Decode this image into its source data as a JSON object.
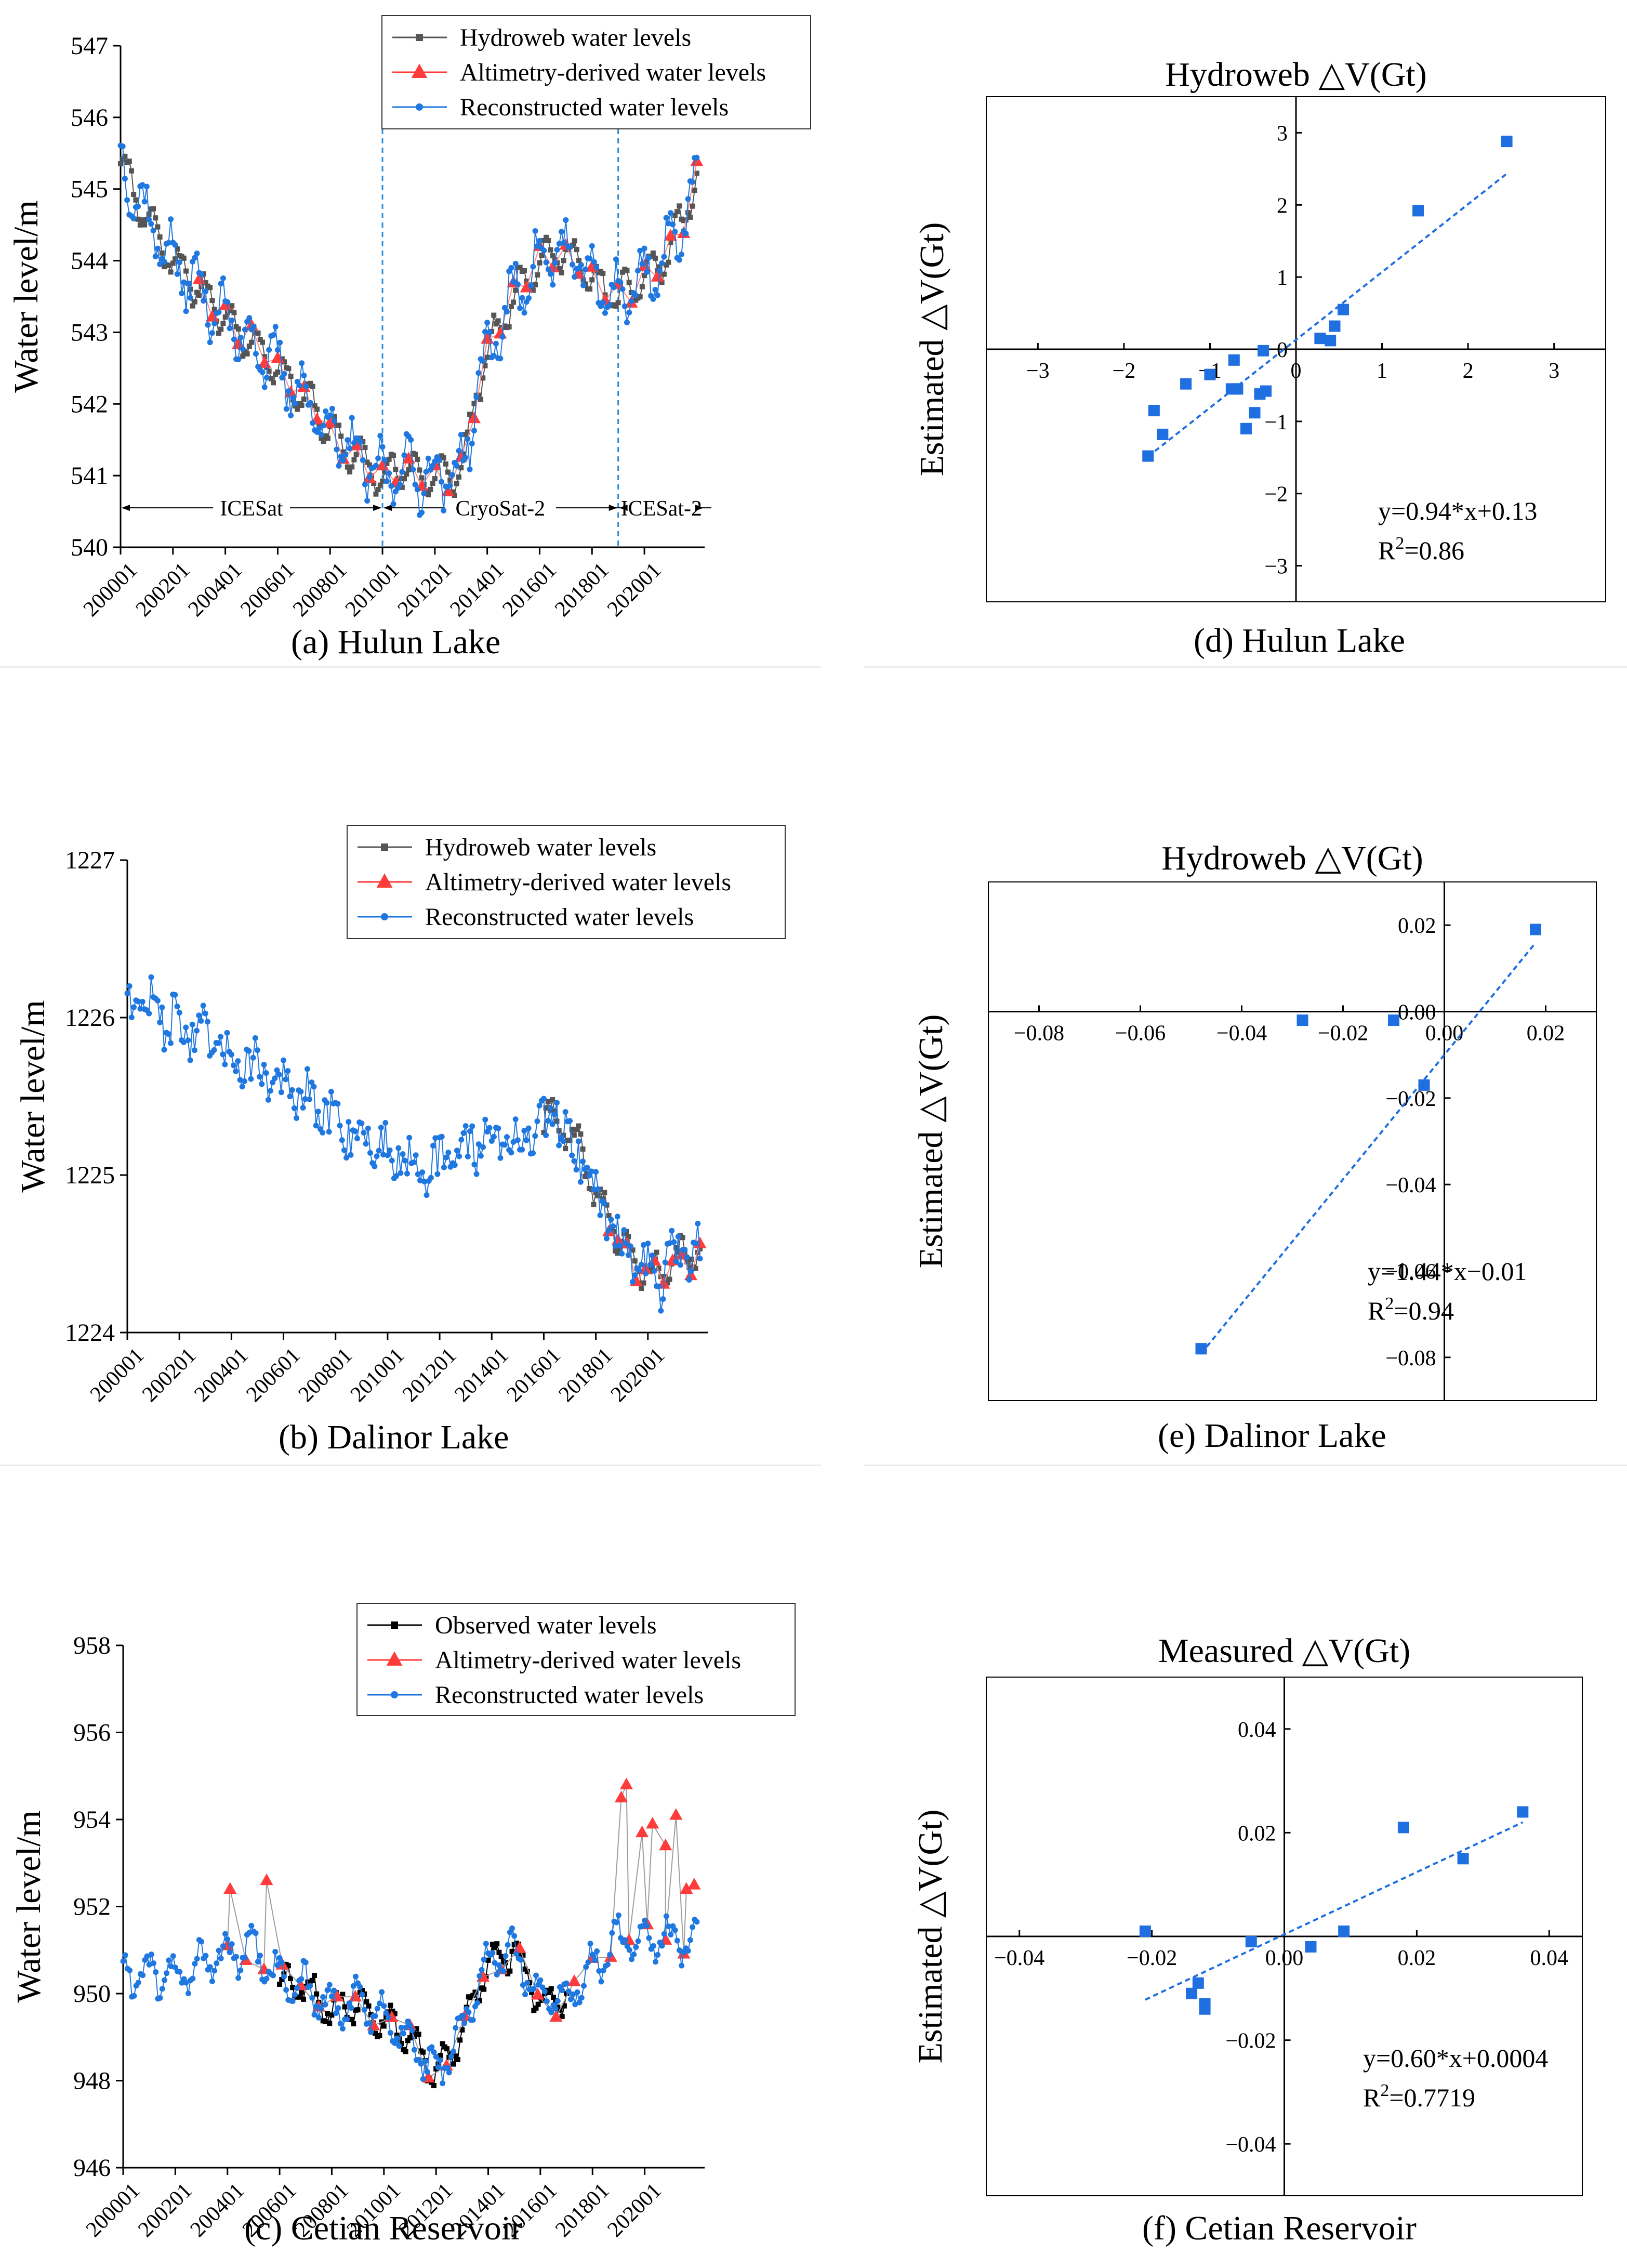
{
  "colors": {
    "hydroweb": "#555555",
    "observed": "#000000",
    "altimetry": "#ff3b3b",
    "reconstructed": "#1f77e0",
    "scatter": "#1f6fe0",
    "divider": "#2a8bd6"
  },
  "chart_data": [
    {
      "id": "a",
      "type": "line",
      "caption": "(a) Hulun Lake",
      "ylabel": "Water level/m",
      "xlabel": "",
      "ylim": [
        540,
        547
      ],
      "yticks": [
        540,
        541,
        542,
        543,
        544,
        545,
        546,
        547
      ],
      "xlim": [
        2000.0,
        2022.3
      ],
      "xticks": [
        2000,
        2002,
        2004,
        2006,
        2008,
        2010,
        2012,
        2014,
        2016,
        2018,
        2020
      ],
      "xtick_labels": [
        "200001",
        "200201",
        "200401",
        "200601",
        "200801",
        "201001",
        "201201",
        "201401",
        "201601",
        "201801",
        "202001"
      ],
      "legend": [
        "Hydroweb water levels",
        "Altimetry-derived water levels",
        "Reconstructed water levels"
      ],
      "legend_position": "top-right",
      "mission_dividers": [
        2010.0,
        2019.0
      ],
      "mission_labels": [
        {
          "text": "ICESat",
          "from": 2000.0,
          "to": 2010.0
        },
        {
          "text": "CryoSat-2",
          "from": 2010.0,
          "to": 2019.0
        },
        {
          "text": "ICESat-2",
          "from": 2019.0,
          "to": 2022.3
        }
      ],
      "mission_label_y": 540.55,
      "trend": [
        [
          2000.0,
          545.4
        ],
        [
          2000.5,
          545.0
        ],
        [
          2001.0,
          544.6
        ],
        [
          2001.5,
          544.3
        ],
        [
          2002.0,
          544.0
        ],
        [
          2002.5,
          543.8
        ],
        [
          2003.0,
          543.6
        ],
        [
          2003.5,
          543.4
        ],
        [
          2004.0,
          543.2
        ],
        [
          2004.5,
          543.0
        ],
        [
          2005.0,
          542.9
        ],
        [
          2005.5,
          542.7
        ],
        [
          2006.0,
          542.5
        ],
        [
          2006.5,
          542.3
        ],
        [
          2007.0,
          542.1
        ],
        [
          2007.5,
          541.9
        ],
        [
          2008.0,
          541.6
        ],
        [
          2008.5,
          541.4
        ],
        [
          2009.0,
          541.3
        ],
        [
          2009.5,
          541.1
        ],
        [
          2010.0,
          541.0
        ],
        [
          2010.5,
          541.1
        ],
        [
          2011.0,
          541.1
        ],
        [
          2011.5,
          541.0
        ],
        [
          2012.0,
          541.0
        ],
        [
          2012.5,
          541.0
        ],
        [
          2013.0,
          541.1
        ],
        [
          2013.3,
          541.5
        ],
        [
          2013.6,
          542.2
        ],
        [
          2014.0,
          542.7
        ],
        [
          2014.5,
          543.1
        ],
        [
          2015.0,
          543.5
        ],
        [
          2015.5,
          543.8
        ],
        [
          2016.0,
          544.0
        ],
        [
          2016.5,
          544.1
        ],
        [
          2017.0,
          544.1
        ],
        [
          2017.5,
          544.0
        ],
        [
          2018.0,
          543.7
        ],
        [
          2018.5,
          543.6
        ],
        [
          2019.0,
          543.5
        ],
        [
          2019.5,
          543.6
        ],
        [
          2020.0,
          543.8
        ],
        [
          2020.5,
          543.9
        ],
        [
          2021.0,
          544.2
        ],
        [
          2021.5,
          544.6
        ],
        [
          2022.0,
          545.2
        ]
      ],
      "series": [
        {
          "name": "Hydroweb water levels",
          "from": 2000.0,
          "to": 2022.0,
          "amp": 0.25,
          "jitter": 0.18,
          "seed": 11,
          "marker": "square"
        },
        {
          "name": "Altimetry-derived water levels",
          "from": 2003.0,
          "to": 2022.0,
          "amp": 0.2,
          "jitter": 0.12,
          "seed": 23,
          "marker": "triangle",
          "step": 0.5
        },
        {
          "name": "Reconstructed water levels",
          "from": 2000.0,
          "to": 2022.0,
          "amp": 0.35,
          "jitter": 0.45,
          "seed": 37,
          "marker": "circle"
        }
      ]
    },
    {
      "id": "b",
      "type": "line",
      "caption": "(b) Dalinor Lake",
      "ylabel": "Water level/m",
      "xlabel": "",
      "ylim": [
        1224,
        1227
      ],
      "yticks": [
        1224,
        1225,
        1226,
        1227
      ],
      "xlim": [
        2000.0,
        2022.3
      ],
      "xticks": [
        2000,
        2002,
        2004,
        2006,
        2008,
        2010,
        2012,
        2014,
        2016,
        2018,
        2020
      ],
      "xtick_labels": [
        "200001",
        "200201",
        "200401",
        "200601",
        "200801",
        "201001",
        "201201",
        "201401",
        "201601",
        "201801",
        "202001"
      ],
      "legend": [
        "Hydroweb water levels",
        "Altimetry-derived water levels",
        "Reconstructed water levels"
      ],
      "legend_position": "top-right",
      "trend": [
        [
          2000.0,
          1226.15
        ],
        [
          2001.0,
          1226.05
        ],
        [
          2002.0,
          1225.95
        ],
        [
          2003.0,
          1225.85
        ],
        [
          2004.0,
          1225.75
        ],
        [
          2005.0,
          1225.7
        ],
        [
          2006.0,
          1225.55
        ],
        [
          2007.0,
          1225.45
        ],
        [
          2008.0,
          1225.35
        ],
        [
          2009.0,
          1225.25
        ],
        [
          2010.0,
          1225.15
        ],
        [
          2011.0,
          1225.1
        ],
        [
          2012.0,
          1225.05
        ],
        [
          2013.0,
          1225.2
        ],
        [
          2014.0,
          1225.25
        ],
        [
          2015.0,
          1225.2
        ],
        [
          2016.0,
          1225.3
        ],
        [
          2016.5,
          1225.4
        ],
        [
          2017.0,
          1225.2
        ],
        [
          2017.5,
          1225.15
        ],
        [
          2018.0,
          1224.85
        ],
        [
          2018.5,
          1224.75
        ],
        [
          2019.0,
          1224.55
        ],
        [
          2019.5,
          1224.45
        ],
        [
          2020.0,
          1224.4
        ],
        [
          2020.5,
          1224.35
        ],
        [
          2021.0,
          1224.45
        ],
        [
          2021.5,
          1224.5
        ],
        [
          2022.0,
          1224.5
        ]
      ],
      "series": [
        {
          "name": "Hydroweb water levels",
          "from": 2016.0,
          "to": 2022.0,
          "amp": 0.1,
          "jitter": 0.12,
          "seed": 41,
          "marker": "square"
        },
        {
          "name": "Altimetry-derived water levels",
          "from": 2018.5,
          "to": 2022.0,
          "amp": 0.1,
          "jitter": 0.1,
          "seed": 43,
          "marker": "triangle",
          "step": 0.35
        },
        {
          "name": "Reconstructed water levels",
          "from": 2000.0,
          "to": 2022.0,
          "amp": 0.08,
          "jitter": 0.28,
          "seed": 47,
          "marker": "circle"
        }
      ]
    },
    {
      "id": "c",
      "type": "line",
      "caption": "(c) Cetian Reservoir",
      "ylabel": "Water level/m",
      "xlabel": "",
      "ylim": [
        946,
        958
      ],
      "yticks": [
        946,
        948,
        950,
        952,
        954,
        956,
        958
      ],
      "xlim": [
        2000.0,
        2022.3
      ],
      "xticks": [
        2000,
        2002,
        2004,
        2006,
        2008,
        2010,
        2012,
        2014,
        2016,
        2018,
        2020
      ],
      "xtick_labels": [
        "200001",
        "200201",
        "200401",
        "200601",
        "200801",
        "201001",
        "201201",
        "201401",
        "201601",
        "201801",
        "202001"
      ],
      "legend": [
        "Observed water levels",
        "Altimetry-derived water levels",
        "Reconstructed water levels"
      ],
      "legend_position": "top-right",
      "trend": [
        [
          2000.0,
          950.5
        ],
        [
          2002.0,
          950.4
        ],
        [
          2004.0,
          950.9
        ],
        [
          2005.0,
          951.0
        ],
        [
          2006.0,
          950.3
        ],
        [
          2007.0,
          950.2
        ],
        [
          2008.0,
          949.6
        ],
        [
          2009.0,
          949.8
        ],
        [
          2010.0,
          949.4
        ],
        [
          2011.0,
          949.0
        ],
        [
          2012.0,
          948.1
        ],
        [
          2013.0,
          949.1
        ],
        [
          2014.0,
          950.8
        ],
        [
          2015.0,
          951.0
        ],
        [
          2016.0,
          949.8
        ],
        [
          2017.0,
          949.9
        ],
        [
          2018.0,
          950.6
        ],
        [
          2019.0,
          951.2
        ],
        [
          2020.0,
          951.3
        ],
        [
          2021.0,
          951.2
        ],
        [
          2022.0,
          951.2
        ]
      ],
      "series": [
        {
          "name": "Observed water levels",
          "from": 2006.0,
          "to": 2017.0,
          "amp": 0.35,
          "jitter": 0.35,
          "seed": 53,
          "marker": "square"
        },
        {
          "name": "Altimetry-derived water levels",
          "from": 2004.0,
          "to": 2022.0,
          "amp": 0.3,
          "jitter": 0.2,
          "seed": 59,
          "marker": "triangle",
          "step": 0.7
        },
        {
          "name": "Reconstructed water levels",
          "from": 2000.0,
          "to": 2022.0,
          "amp": 0.4,
          "jitter": 0.5,
          "seed": 61,
          "marker": "circle"
        }
      ],
      "spikes": [
        [
          2004.1,
          952.4
        ],
        [
          2005.5,
          952.6
        ],
        [
          2019.1,
          954.5
        ],
        [
          2019.3,
          954.8
        ],
        [
          2019.9,
          953.7
        ],
        [
          2020.3,
          953.9
        ],
        [
          2020.8,
          953.4
        ],
        [
          2021.2,
          954.1
        ],
        [
          2021.6,
          952.4
        ],
        [
          2021.9,
          952.5
        ]
      ]
    },
    {
      "id": "d",
      "type": "scatter",
      "caption": "(d) Hulun Lake",
      "title": "Hydroweb △V(Gt)",
      "ylabel": "Estimated △V(Gt)",
      "xlim": [
        -3.6,
        3.6
      ],
      "ylim": [
        -3.5,
        3.5
      ],
      "xticks": [
        -3,
        -2,
        -1,
        0,
        1,
        2,
        3
      ],
      "xtick_labels": [
        "−3",
        "−2",
        "−1",
        "0",
        "1",
        "2",
        "3"
      ],
      "yticks": [
        -3,
        -2,
        -1,
        0,
        1,
        2,
        3
      ],
      "ytick_labels": [
        "−3",
        "−2",
        "−1",
        "0",
        "1",
        "2",
        "3"
      ],
      "points": [
        [
          -1.72,
          -1.48
        ],
        [
          -1.65,
          -0.85
        ],
        [
          -1.55,
          -1.18
        ],
        [
          -1.28,
          -0.48
        ],
        [
          -1.0,
          -0.35
        ],
        [
          -0.75,
          -0.55
        ],
        [
          -0.72,
          -0.15
        ],
        [
          -0.68,
          -0.55
        ],
        [
          -0.58,
          -1.1
        ],
        [
          -0.48,
          -0.88
        ],
        [
          -0.42,
          -0.62
        ],
        [
          -0.35,
          -0.58
        ],
        [
          -0.38,
          -0.02
        ],
        [
          0.28,
          0.15
        ],
        [
          0.4,
          0.12
        ],
        [
          0.45,
          0.32
        ],
        [
          0.55,
          0.55
        ],
        [
          1.42,
          1.92
        ],
        [
          2.45,
          2.88
        ]
      ],
      "fit": {
        "slope": 0.94,
        "intercept": 0.13,
        "x_from": -1.72,
        "x_to": 2.45
      },
      "equation": "y=0.94*x+0.13",
      "r2_label": "R",
      "r2_sup": "2",
      "r2_value": "=0.86"
    },
    {
      "id": "e",
      "type": "scatter",
      "caption": "(e) Dalinor Lake",
      "title": "Hydroweb △V(Gt)",
      "ylabel": "Estimated △V(Gt)",
      "xlim": [
        -0.09,
        0.03
      ],
      "ylim": [
        -0.09,
        0.03
      ],
      "xticks": [
        -0.08,
        -0.06,
        -0.04,
        -0.02,
        0.0,
        0.02
      ],
      "xtick_labels": [
        "−0.08",
        "−0.06",
        "−0.04",
        "−0.02",
        "0.00",
        "0.02"
      ],
      "yticks": [
        -0.08,
        -0.06,
        -0.04,
        -0.02,
        0.0,
        0.02
      ],
      "ytick_labels": [
        "−0.08",
        "−0.06",
        "−0.04",
        "−0.02",
        "0.00",
        "0.02"
      ],
      "points": [
        [
          -0.048,
          -0.078
        ],
        [
          -0.028,
          -0.002
        ],
        [
          -0.01,
          -0.002
        ],
        [
          -0.004,
          -0.017
        ],
        [
          0.018,
          0.019
        ]
      ],
      "fit": {
        "slope": 1.44,
        "intercept": -0.01,
        "x_from": -0.048,
        "x_to": 0.018
      },
      "equation": "y=1.44*x−0.01",
      "r2_label": "R",
      "r2_sup": "2",
      "r2_value": "=0.94"
    },
    {
      "id": "f",
      "type": "scatter",
      "caption": "(f) Cetian Reservoir",
      "title": "Measured △V(Gt)",
      "ylabel": "Estimated △V(Gt)",
      "xlim": [
        -0.045,
        0.045
      ],
      "ylim": [
        -0.05,
        0.05
      ],
      "xticks": [
        -0.04,
        -0.02,
        0.0,
        0.02,
        0.04
      ],
      "xtick_labels": [
        "−0.04",
        "−0.02",
        "0.00",
        "0.02",
        "0.04"
      ],
      "yticks": [
        -0.04,
        -0.02,
        0.02,
        0.04
      ],
      "ytick_labels": [
        "−0.04",
        "−0.02",
        "0.02",
        "0.04"
      ],
      "points": [
        [
          -0.021,
          0.001
        ],
        [
          -0.014,
          -0.011
        ],
        [
          -0.013,
          -0.009
        ],
        [
          -0.012,
          -0.013
        ],
        [
          -0.012,
          -0.014
        ],
        [
          -0.005,
          -0.001
        ],
        [
          0.004,
          -0.002
        ],
        [
          0.009,
          0.001
        ],
        [
          0.018,
          0.021
        ],
        [
          0.027,
          0.015
        ],
        [
          0.036,
          0.024
        ]
      ],
      "fit": {
        "slope": 0.6,
        "intercept": 0.0004,
        "x_from": -0.021,
        "x_to": 0.036
      },
      "equation": "y=0.60*x+0.0004",
      "r2_label": "R",
      "r2_sup": "2",
      "r2_value": "=0.7719"
    }
  ]
}
